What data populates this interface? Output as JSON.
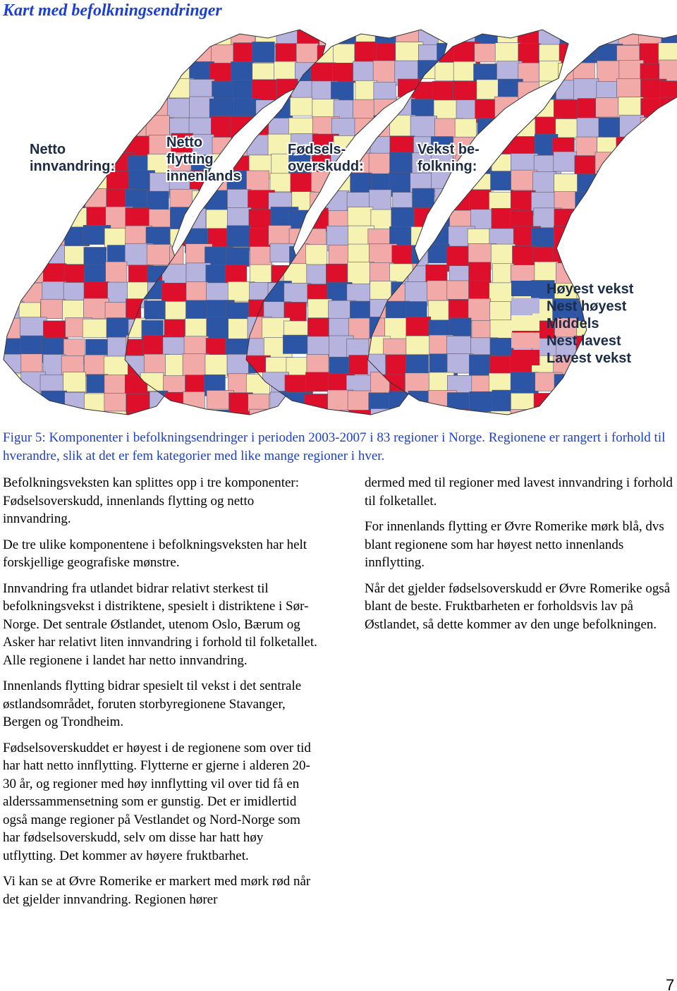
{
  "header": {
    "title": "Kart med befolkningsendringer"
  },
  "figure": {
    "map_labels": [
      [
        "Netto",
        "innvandring:"
      ],
      [
        "Netto",
        "flytting",
        "innenlands"
      ],
      [
        "Fødsels-",
        "overskudd:"
      ],
      [
        "Vekst be-",
        "folkning:"
      ]
    ],
    "legend": [
      {
        "label": "Høyest vekst",
        "color": "#2c55a6"
      },
      {
        "label": "Nest høyest",
        "color": "#b6b4de"
      },
      {
        "label": "Middels",
        "color": "#f6f2b2"
      },
      {
        "label": "Nest lavest",
        "color": "#f2aaa8"
      },
      {
        "label": "Lavest vekst",
        "color": "#de0f2b"
      }
    ],
    "caption": "Figur 5: Komponenter i befolkningsendringer i perioden 2003-2007 i 83 regioner i Norge.  Regionene er rangert i forhold til hverandre, slik at det er fem kategorier med like mange regioner i hver."
  },
  "left_column": [
    "Befolkningsveksten kan splittes opp i tre komponenter: Fødselsoverskudd, innenlands flytting og netto innvandring.",
    "De tre ulike komponentene i befolkningsveksten har helt forskjellige geografiske mønstre.",
    "Innvandring fra utlandet bidrar relativt sterkest til befolkningsvekst i distriktene, spesielt i distriktene i Sør-Norge. Det sentrale Østlandet, utenom Oslo, Bærum og Asker har relativt liten innvandring i forhold til folketallet. Alle regionene i landet har netto innvandring.",
    "Innenlands flytting bidrar spesielt til vekst i det sentrale østlandsområdet, foruten storbyregionene Stavanger, Bergen og Trondheim.",
    "Fødselsoverskuddet er høyest i de regionene som over tid har hatt netto innflytting. Flytterne er gjerne i alderen 20-30 år, og regioner med høy innflytting vil over tid få en alderssammensetning som er gunstig. Det er imidlertid også mange regioner på Vestlandet og Nord-Norge som har fødselsoverskudd, selv om disse har hatt høy utflytting. Det kommer av høyere fruktbarhet.",
    "Vi kan se at Øvre Romerike er markert med mørk rød når det gjelder innvandring. Regionen hører"
  ],
  "right_column": [
    "dermed med til regioner med lavest innvandring i forhold til folketallet.",
    "For innenlands flytting er Øvre Romerike mørk blå, dvs blant regionene som har høyest netto innenlands innflytting.",
    "Når det gjelder fødselsoverskudd er Øvre Romerike også blant de beste. Fruktbarheten er forholdsvis lav på Østlandet, så dette kommer av den unge befolkningen."
  ],
  "page_number": "7"
}
